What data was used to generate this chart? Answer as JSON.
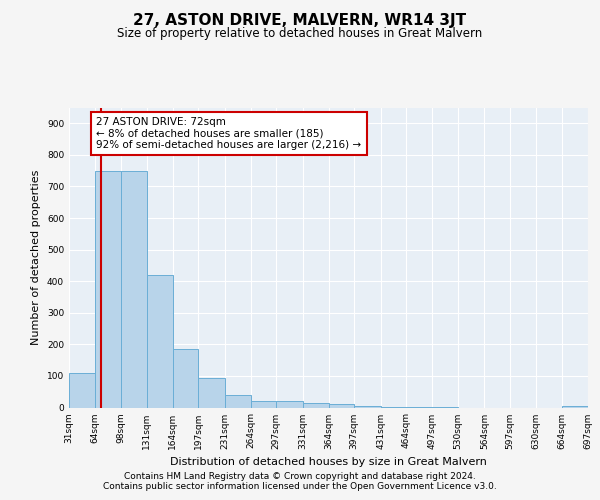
{
  "title": "27, ASTON DRIVE, MALVERN, WR14 3JT",
  "subtitle": "Size of property relative to detached houses in Great Malvern",
  "xlabel": "Distribution of detached houses by size in Great Malvern",
  "ylabel": "Number of detached properties",
  "bar_color": "#b8d4ea",
  "bar_edge_color": "#6aaed6",
  "background_color": "#e8eff6",
  "grid_color": "#ffffff",
  "bin_edges": [
    31,
    64,
    98,
    131,
    164,
    197,
    231,
    264,
    297,
    331,
    364,
    397,
    431,
    464,
    497,
    530,
    564,
    597,
    630,
    664,
    697
  ],
  "counts": [
    110,
    750,
    750,
    420,
    185,
    95,
    40,
    20,
    20,
    15,
    10,
    5,
    3,
    2,
    1,
    0,
    0,
    0,
    0,
    5
  ],
  "property_size": 72,
  "red_line_color": "#cc0000",
  "annotation_text": "27 ASTON DRIVE: 72sqm\n← 8% of detached houses are smaller (185)\n92% of semi-detached houses are larger (2,216) →",
  "ylim": [
    0,
    950
  ],
  "yticks": [
    0,
    100,
    200,
    300,
    400,
    500,
    600,
    700,
    800,
    900
  ],
  "xtick_labels": [
    "31sqm",
    "64sqm",
    "98sqm",
    "131sqm",
    "164sqm",
    "197sqm",
    "231sqm",
    "264sqm",
    "297sqm",
    "331sqm",
    "364sqm",
    "397sqm",
    "431sqm",
    "464sqm",
    "497sqm",
    "530sqm",
    "564sqm",
    "597sqm",
    "630sqm",
    "664sqm",
    "697sqm"
  ],
  "footnote1": "Contains HM Land Registry data © Crown copyright and database right 2024.",
  "footnote2": "Contains public sector information licensed under the Open Government Licence v3.0.",
  "fig_bg": "#f5f5f5",
  "title_fontsize": 11,
  "subtitle_fontsize": 8.5,
  "ylabel_fontsize": 8,
  "xlabel_fontsize": 8,
  "tick_fontsize": 6.5,
  "footnote_fontsize": 6.5
}
